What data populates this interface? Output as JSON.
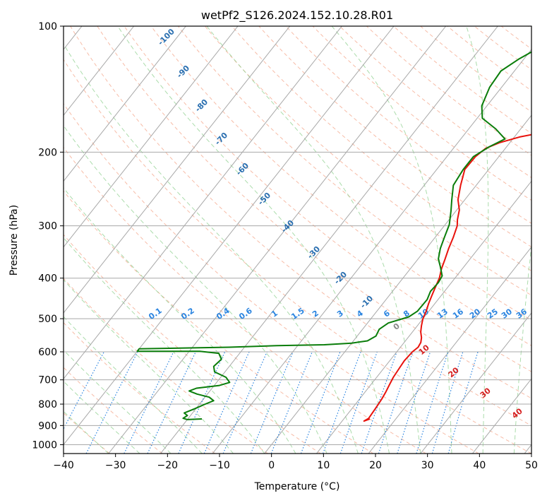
{
  "chart_data": {
    "type": "line",
    "title": "wetPf2_S126.2024.152.10.28.R01",
    "xlabel": "Temperature (°C)",
    "ylabel": "Pressure (hPa)",
    "xlim": [
      -40,
      50
    ],
    "ylim": [
      1050,
      100
    ],
    "y_scale": "log",
    "skew": true,
    "grid": true,
    "x_ticks": [
      "−40",
      "−30",
      "−20",
      "−10",
      "0",
      "10",
      "20",
      "30",
      "40",
      "50"
    ],
    "y_ticks": [
      "100",
      "200",
      "300",
      "400",
      "500",
      "600",
      "700",
      "800",
      "900",
      "1000"
    ],
    "colors": {
      "temperature": "#e8120c",
      "dewpoint": "#0a7d0a",
      "isotherm": "#a8a8a8",
      "dry_adiabat": "#f4a58a",
      "moist_adiabat": "#8fd08f",
      "mixing_ratio": "#2a84e0",
      "moist_adiabat_label": "#2a6fb0",
      "dry_adiabat_label": "#d62020",
      "dry_adiabat_curve": "#c8a888"
    },
    "series": [
      {
        "key": "temperature",
        "points": [
          [
            15,
            868
          ],
          [
            14.2,
            878
          ],
          [
            14.7,
            865
          ],
          [
            14.5,
            820
          ],
          [
            14.3,
            780
          ],
          [
            14,
            750
          ],
          [
            13.6,
            720
          ],
          [
            13.2,
            690
          ],
          [
            13,
            660
          ],
          [
            12.8,
            630
          ],
          [
            13,
            600
          ],
          [
            13.4,
            585
          ],
          [
            13.2,
            570
          ],
          [
            12.6,
            555
          ],
          [
            11.6,
            538
          ],
          [
            10.8,
            520
          ],
          [
            10,
            500
          ],
          [
            9.5,
            480
          ],
          [
            8.8,
            460
          ],
          [
            8.2,
            440
          ],
          [
            7.6,
            420
          ],
          [
            7,
            400
          ],
          [
            6,
            380
          ],
          [
            5.2,
            360
          ],
          [
            4.3,
            340
          ],
          [
            3.5,
            320
          ],
          [
            2.5,
            300
          ],
          [
            1.6,
            290
          ],
          [
            0.5,
            275
          ],
          [
            -1.3,
            260
          ],
          [
            -3,
            240
          ],
          [
            -4.6,
            220
          ],
          [
            -4.5,
            205
          ],
          [
            -3.8,
            196
          ],
          [
            -2,
            190
          ],
          [
            1,
            184
          ],
          [
            6,
            178
          ],
          [
            11,
            172
          ],
          [
            13.5,
            166
          ],
          [
            15,
            158
          ],
          [
            16,
            150
          ],
          [
            18,
            140
          ],
          [
            20.5,
            130
          ],
          [
            23,
            120
          ],
          [
            25,
            112
          ],
          [
            27,
            105
          ],
          [
            28,
            100
          ]
        ]
      },
      {
        "key": "dewpoint",
        "points": [
          [
            -17.3,
            868
          ],
          [
            -20,
            871
          ],
          [
            -21,
            865
          ],
          [
            -20.6,
            852
          ],
          [
            -21.6,
            840
          ],
          [
            -20.2,
            820
          ],
          [
            -18.9,
            800
          ],
          [
            -17.8,
            785
          ],
          [
            -19.2,
            770
          ],
          [
            -22,
            757
          ],
          [
            -24,
            744
          ],
          [
            -23,
            733
          ],
          [
            -19,
            722
          ],
          [
            -17.5,
            710
          ],
          [
            -19,
            690
          ],
          [
            -22,
            670
          ],
          [
            -23,
            650
          ],
          [
            -22.6,
            625
          ],
          [
            -24,
            605
          ],
          [
            -28,
            598
          ],
          [
            -40,
            598
          ],
          [
            -40,
            590
          ],
          [
            -23,
            585
          ],
          [
            -14,
            580
          ],
          [
            -5,
            577
          ],
          [
            0,
            572
          ],
          [
            2.7,
            565
          ],
          [
            3.6,
            550
          ],
          [
            3.2,
            530
          ],
          [
            4,
            512
          ],
          [
            7,
            495
          ],
          [
            7.8,
            480
          ],
          [
            7.9,
            450
          ],
          [
            7.3,
            430
          ],
          [
            7.5,
            410
          ],
          [
            7.2,
            395
          ],
          [
            5.4,
            375
          ],
          [
            3.9,
            360
          ],
          [
            2.7,
            340
          ],
          [
            1.8,
            320
          ],
          [
            0.8,
            298
          ],
          [
            -1,
            276
          ],
          [
            -2.5,
            260
          ],
          [
            -4.4,
            240
          ],
          [
            -4.9,
            220
          ],
          [
            -4.9,
            205
          ],
          [
            -3.3,
            194
          ],
          [
            -1.5,
            186
          ],
          [
            -4.8,
            176
          ],
          [
            -9,
            166
          ],
          [
            -11,
            155
          ],
          [
            -12.3,
            140
          ],
          [
            -12.6,
            128
          ],
          [
            -11,
            120
          ],
          [
            -8,
            110
          ],
          [
            -4.6,
            100
          ]
        ]
      }
    ],
    "moist_adiabat_labels": [
      "-100",
      "-90",
      "-80",
      "-70",
      "-60",
      "-50",
      "-40",
      "-30",
      "-20",
      "-10"
    ],
    "mixing_ratio_labels": [
      "0.1",
      "0.2",
      "0.4",
      "0.6",
      "1",
      "1.5",
      "2",
      "3",
      "4",
      "6",
      "8",
      "10",
      "13",
      "16",
      "20",
      "25",
      "30",
      "36"
    ],
    "dry_adiabat_labels": [
      "0",
      "10",
      "20",
      "30",
      "40"
    ]
  }
}
